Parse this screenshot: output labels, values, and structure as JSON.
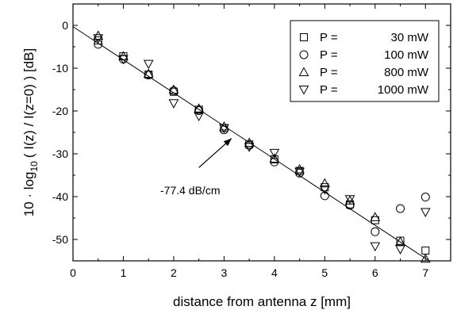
{
  "chart_data": {
    "type": "scatter",
    "xlabel": "distance from antenna z [mm]",
    "ylabel": {
      "prefix": "10 · log",
      "subscript": "10",
      "suffix": "( I(z) / I(z=0) ) [dB]"
    },
    "xlim": [
      0,
      7.5
    ],
    "ylim": [
      -55,
      5
    ],
    "xticks": [
      0,
      1,
      2,
      3,
      4,
      5,
      6,
      7
    ],
    "yticks": [
      0,
      -10,
      -20,
      -30,
      -40,
      -50
    ],
    "grid": false,
    "legend_placement": "top-right",
    "fit_line": {
      "x": [
        0,
        7.5
      ],
      "y": [
        -0.3,
        -58.3
      ]
    },
    "annotation": {
      "text": "-77.4 dB/cm",
      "arrow_to": [
        3.15,
        -26.4
      ],
      "arrow_from": [
        2.5,
        -33.2
      ]
    },
    "series": [
      {
        "marker": "square",
        "legend": {
          "p": "P =",
          "value": "30 mW"
        },
        "x": [
          0.5,
          1.0,
          1.5,
          2.0,
          2.5,
          3.0,
          3.5,
          4.0,
          4.5,
          5.0,
          5.5,
          6.0,
          6.5,
          7.0
        ],
        "y": [
          -3.5,
          -7.2,
          -11.5,
          -15.5,
          -19.7,
          -24.0,
          -27.8,
          -31.3,
          -34.0,
          -37.8,
          -41.8,
          -45.5,
          -50.3,
          -52.6
        ]
      },
      {
        "marker": "circle",
        "legend": {
          "p": "P =",
          "value": "100 mW"
        },
        "x": [
          0.5,
          1.0,
          1.5,
          2.0,
          2.5,
          3.0,
          3.5,
          4.0,
          4.5,
          5.0,
          5.5,
          6.0,
          6.5,
          7.0
        ],
        "y": [
          -4.4,
          -7.9,
          -11.6,
          -15.3,
          -19.9,
          -24.4,
          -28.0,
          -31.9,
          -34.5,
          -39.8,
          -42.0,
          -48.2,
          -42.8,
          -40.1
        ]
      },
      {
        "marker": "triangle-up",
        "legend": {
          "p": "P =",
          "value": "800 mW"
        },
        "x": [
          0.5,
          1.0,
          1.5,
          2.0,
          2.5,
          3.0,
          3.5,
          4.0,
          4.5,
          5.0,
          5.5,
          6.0,
          6.5,
          7.0
        ],
        "y": [
          -2.4,
          -7.2,
          -11.3,
          -15.0,
          -19.4,
          -23.6,
          -27.4,
          -31.1,
          -33.6,
          -36.9,
          -40.9,
          -44.8,
          -50.5,
          -54.5
        ]
      },
      {
        "marker": "triangle-down",
        "legend": {
          "p": "P =",
          "value": "1000 mW"
        },
        "x": [
          0.5,
          1.0,
          1.5,
          2.0,
          2.5,
          3.0,
          3.5,
          4.0,
          4.5,
          5.0,
          5.5,
          6.0,
          6.5,
          7.0
        ],
        "y": [
          -3.0,
          -7.9,
          -9.0,
          -18.2,
          -21.2,
          -24.0,
          -28.4,
          -29.8,
          -34.2,
          -38.3,
          -40.6,
          -51.6,
          -52.3,
          -43.6
        ]
      }
    ]
  }
}
